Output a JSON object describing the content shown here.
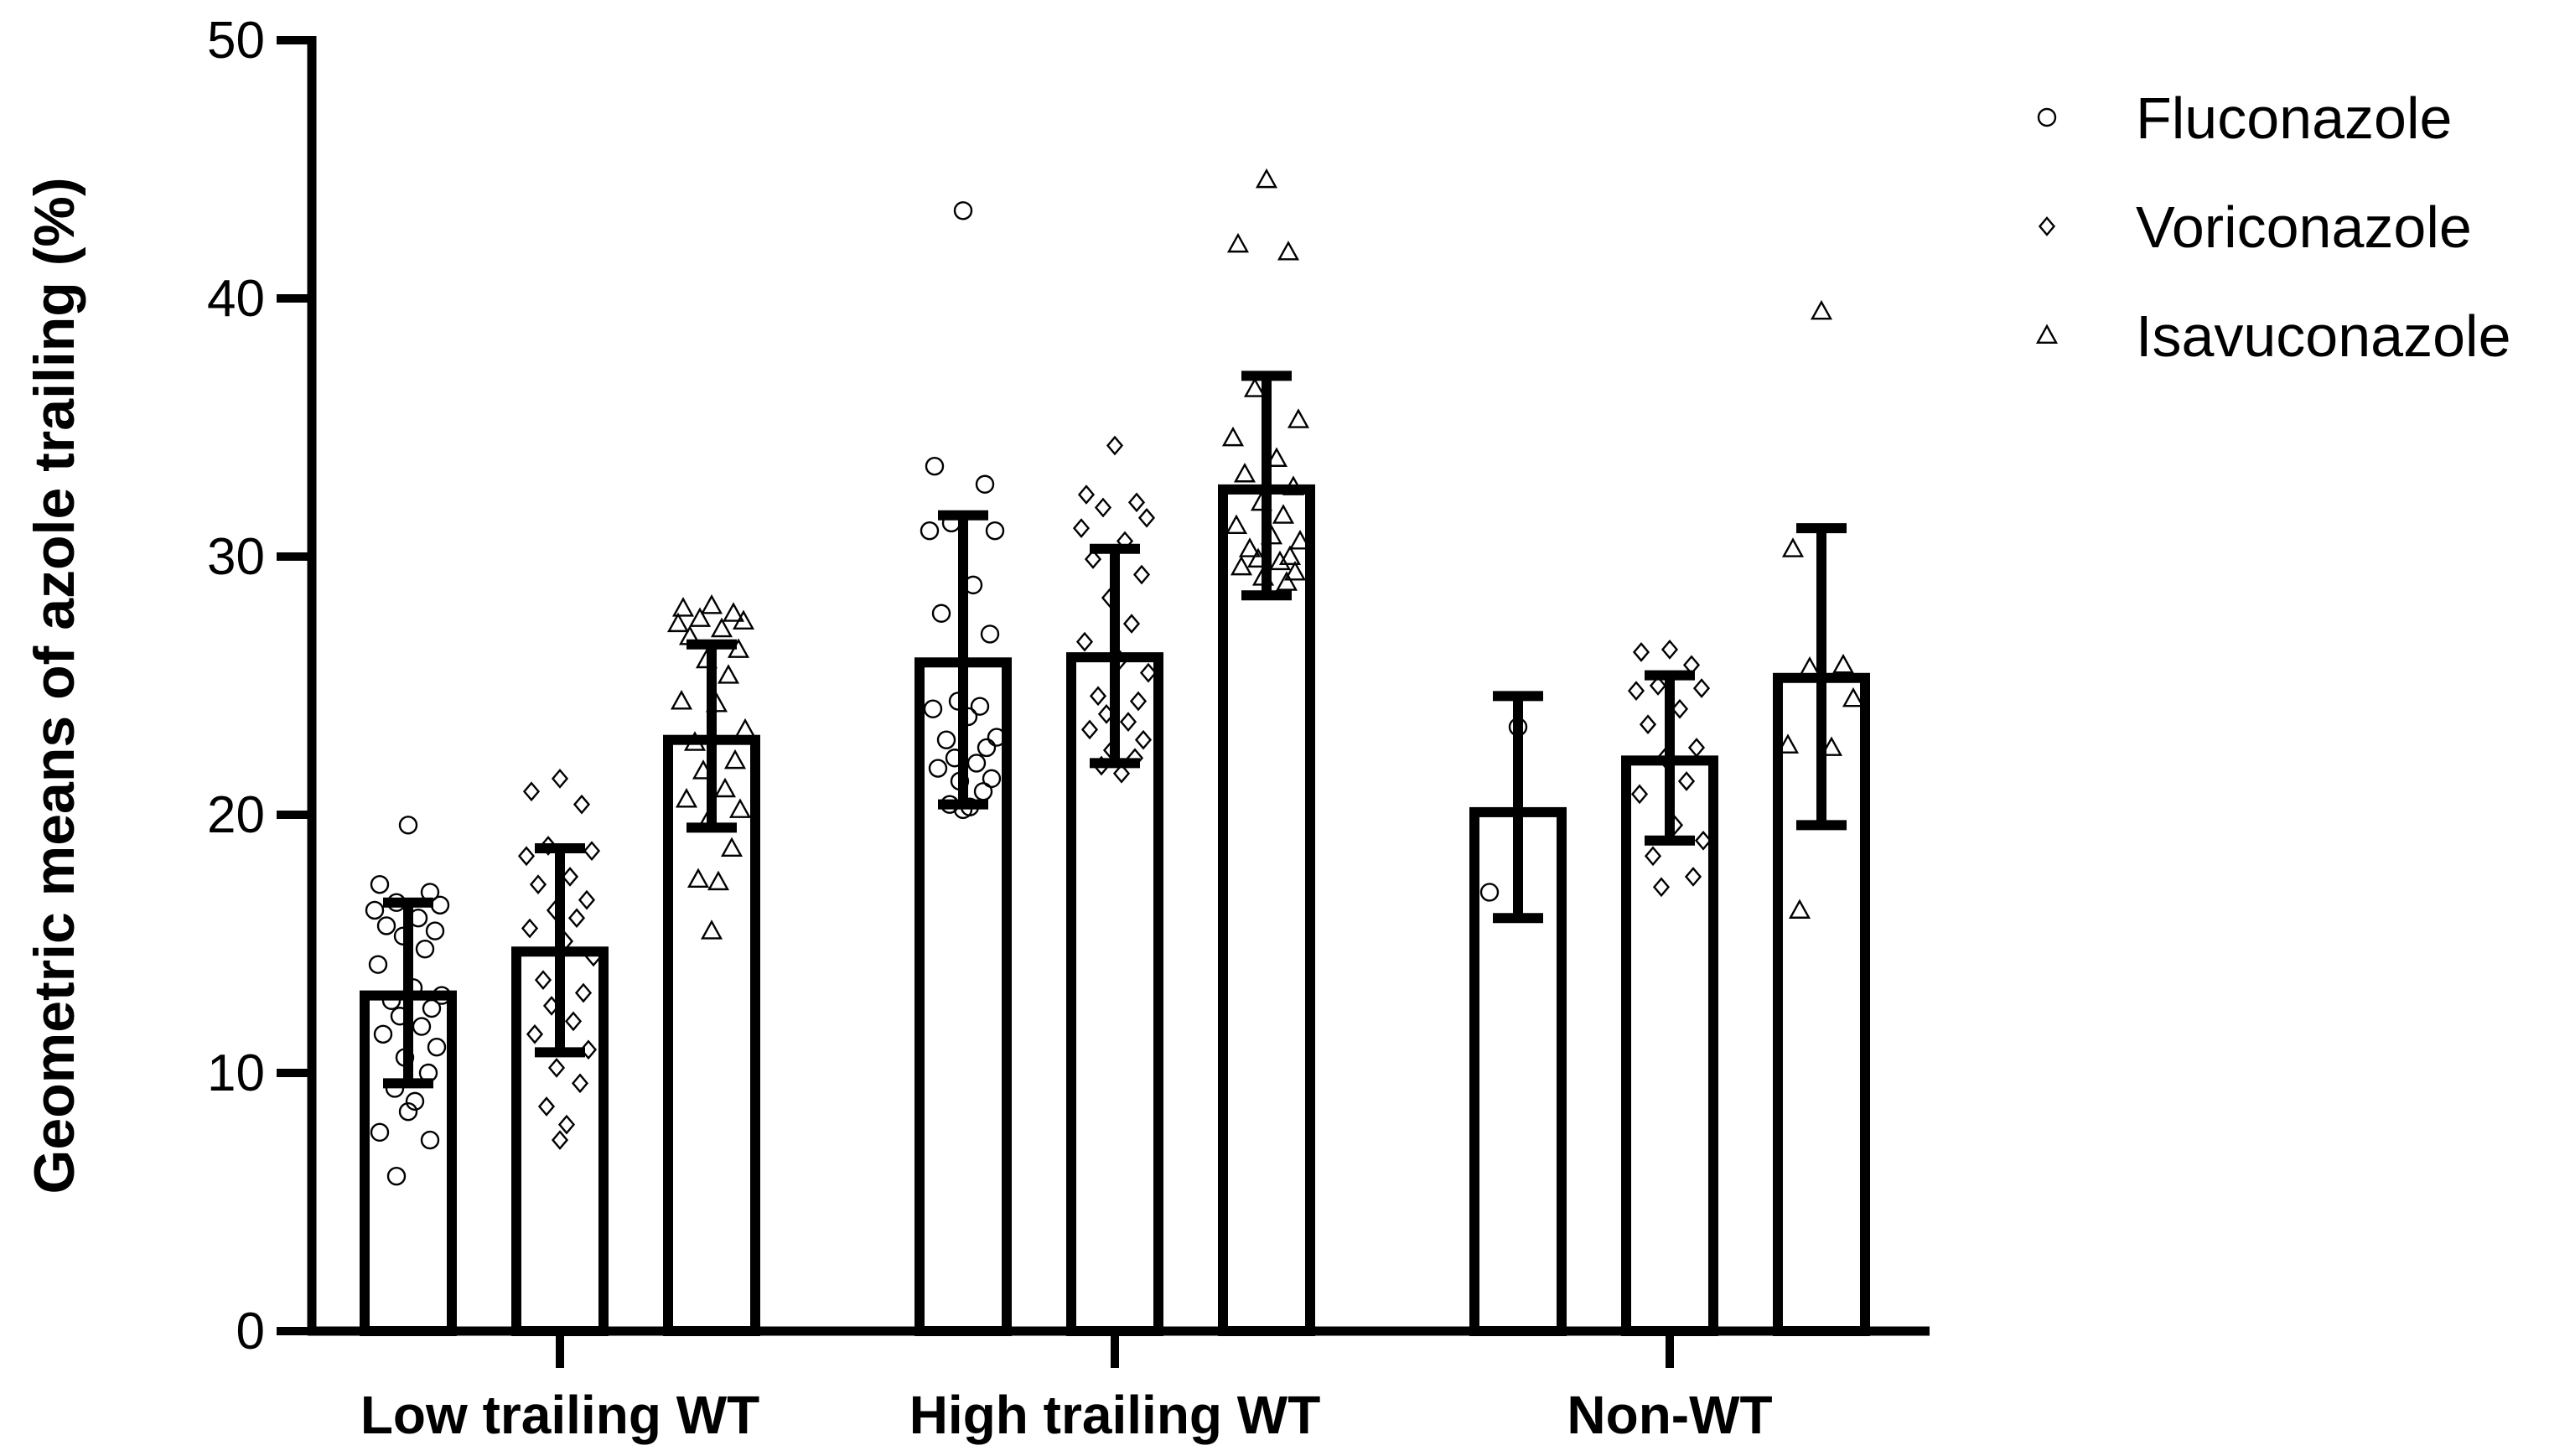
{
  "chart_data": {
    "type": "bar",
    "ylabel": "Geometric means of azole trailing (%)",
    "xlabel": "",
    "ylim": [
      0,
      50
    ],
    "yticks": [
      0,
      10,
      20,
      30,
      40,
      50
    ],
    "grid": false,
    "legend_position": "top-right",
    "categories": [
      "Low trailing WT",
      "High trailing WT",
      "Non-WT"
    ],
    "series": [
      {
        "name": "Fluconazole",
        "marker": "circle",
        "values": [
          13.0,
          25.9,
          20.1
        ],
        "error_low": [
          9.6,
          20.4,
          16.0
        ],
        "error_high": [
          16.6,
          31.6,
          24.6
        ],
        "points": [
          [
            19.6,
            17.3,
            17.0,
            16.6,
            16.5,
            16.3,
            16.0,
            15.7,
            15.5,
            15.3,
            14.8,
            14.2,
            13.3,
            13.0,
            12.8,
            12.5,
            12.2,
            11.8,
            11.5,
            11.0,
            10.6,
            10.0,
            9.4,
            8.9,
            8.5,
            7.7,
            7.4,
            6.0
          ],
          [
            43.4,
            33.5,
            32.8,
            31.3,
            31.0,
            31.0,
            28.9,
            27.8,
            27.0,
            24.4,
            24.2,
            24.1,
            23.8,
            23.0,
            22.9,
            22.6,
            22.2,
            22.0,
            21.8,
            21.4,
            21.3,
            20.9,
            20.4,
            20.3,
            20.2
          ],
          [
            23.4,
            17.0
          ]
        ]
      },
      {
        "name": "Voriconazole",
        "marker": "diamond",
        "values": [
          14.7,
          26.1,
          22.1
        ],
        "error_low": [
          10.8,
          22.0,
          19.0
        ],
        "error_high": [
          18.7,
          30.3,
          25.4
        ],
        "points": [
          [
            21.4,
            20.9,
            20.4,
            18.8,
            18.6,
            18.4,
            17.6,
            17.3,
            16.7,
            16.3,
            16.0,
            15.6,
            15.1,
            14.5,
            13.6,
            13.1,
            12.6,
            12.0,
            11.5,
            10.9,
            10.2,
            9.6,
            8.7,
            8.0,
            7.4
          ],
          [
            34.3,
            32.4,
            32.1,
            31.9,
            31.5,
            31.1,
            30.6,
            29.9,
            29.3,
            28.4,
            27.4,
            26.7,
            26.0,
            25.5,
            24.6,
            24.4,
            23.9,
            23.6,
            23.3,
            22.9,
            22.5,
            22.2,
            21.9,
            21.6
          ],
          [
            26.4,
            26.3,
            25.8,
            25.0,
            24.9,
            24.8,
            24.1,
            23.5,
            22.6,
            22.2,
            21.3,
            20.8,
            19.6,
            19.0,
            18.4,
            17.6,
            17.2
          ]
        ]
      },
      {
        "name": "Isavuconazole",
        "marker": "triangle",
        "values": [
          22.9,
          32.6,
          25.3
        ],
        "error_low": [
          19.5,
          28.5,
          19.6
        ],
        "error_high": [
          26.6,
          37.0,
          31.1
        ],
        "points": [
          [
            28.1,
            28.0,
            27.8,
            27.6,
            27.5,
            27.4,
            27.2,
            26.9,
            26.4,
            26.0,
            25.4,
            24.4,
            24.3,
            23.3,
            22.8,
            22.1,
            21.7,
            21.0,
            20.6,
            20.2,
            19.8,
            18.7,
            17.5,
            17.4,
            15.5
          ],
          [
            44.6,
            42.1,
            41.8,
            36.5,
            35.3,
            34.6,
            33.8,
            33.2,
            32.7,
            32.1,
            31.6,
            31.2,
            30.8,
            30.6,
            30.3,
            30.0,
            29.9,
            29.8,
            29.6,
            29.4,
            29.2,
            29.0
          ],
          [
            39.5,
            30.3,
            25.8,
            25.7,
            24.5,
            22.7,
            22.6,
            16.3
          ]
        ]
      }
    ]
  }
}
